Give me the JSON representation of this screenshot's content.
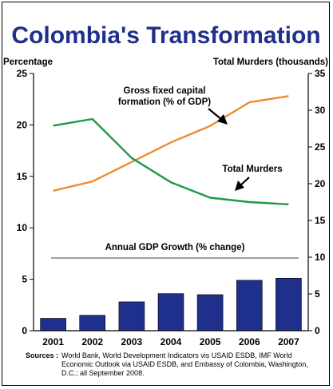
{
  "chart_data": {
    "type": "bar+line",
    "title": "Colombia's Transformation",
    "left_axis_label": "Percentage",
    "right_axis_label": "Total Murders (thousands)",
    "left_ylim": [
      0,
      25
    ],
    "left_ticks": [
      0,
      5,
      10,
      15,
      20,
      25
    ],
    "right_ylim": [
      0,
      35
    ],
    "right_ticks": [
      0,
      5,
      10,
      15,
      20,
      25,
      30,
      35
    ],
    "categories": [
      "2001",
      "2002",
      "2003",
      "2004",
      "2005",
      "2006",
      "2007"
    ],
    "series": [
      {
        "name": "Gross fixed capital formation (% of GDP)",
        "type": "line",
        "axis": "left",
        "color": "#f28a2e",
        "values": [
          13.6,
          14.5,
          16.4,
          18.3,
          19.9,
          22.2,
          22.8
        ]
      },
      {
        "name": "Total Murders",
        "type": "line",
        "axis": "right",
        "color": "#1e9a48",
        "values": [
          27.9,
          28.8,
          23.5,
          20.2,
          18.1,
          17.5,
          17.2
        ]
      },
      {
        "name": "Annual GDP Growth (% change)",
        "type": "bar",
        "axis": "left",
        "color": "#1f2f8c",
        "values": [
          1.2,
          1.5,
          2.8,
          3.6,
          3.5,
          4.9,
          5.1
        ]
      }
    ],
    "annotations": {
      "gfcf_line1": "Gross fixed capital",
      "gfcf_line2": "formation (% of GDP)",
      "murders": "Total Murders",
      "gdp": "Annual GDP Growth (% change)"
    }
  },
  "colors": {
    "title": "#1f2f8c",
    "bars": "#1f2f8c",
    "gfcf_line": "#f28a2e",
    "murders_line": "#1e9a48"
  },
  "sources": {
    "heading": "Sources :",
    "text": "World Bank, World Development Indicators vis USAID ESDB, IMF World Economic Outlook via USAID ESDB, and Embassy of Colombia, Washington, D.C.; all September 2008."
  }
}
